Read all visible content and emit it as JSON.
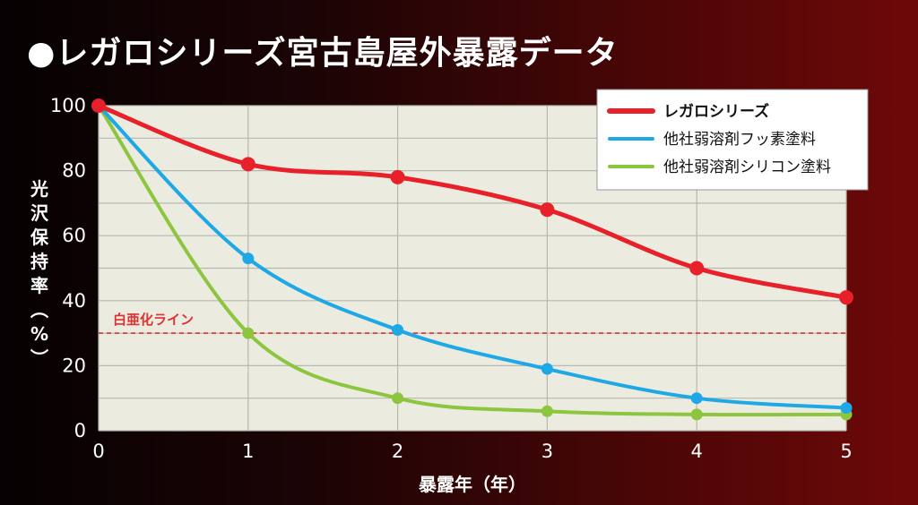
{
  "title": "●レガロシリーズ宮古島屋外暴露データ",
  "chart_data": {
    "type": "line",
    "title": "●レガロシリーズ宮古島屋外暴露データ",
    "xlabel": "暴露年（年）",
    "ylabel": "光沢保持率（%）",
    "x": [
      0,
      1,
      2,
      3,
      4,
      5
    ],
    "xlim": [
      0,
      5
    ],
    "ylim": [
      0,
      100
    ],
    "yticks": [
      0,
      20,
      40,
      60,
      80,
      100
    ],
    "grid": true,
    "legend_position": "top-right",
    "series": [
      {
        "name": "レガロシリーズ",
        "color": "#e8202a",
        "values": [
          100,
          82,
          78,
          68,
          50,
          41
        ]
      },
      {
        "name": "他社弱溶剤フッ素塗料",
        "color": "#1ea8e6",
        "values": [
          100,
          53,
          31,
          19,
          10,
          7
        ]
      },
      {
        "name": "他社弱溶剤シリコン塗料",
        "color": "#8cc63f",
        "values": [
          100,
          30,
          10,
          6,
          5,
          5
        ]
      }
    ],
    "reference_line": {
      "label": "白亜化ライン",
      "y": 30,
      "color": "#e03030"
    }
  }
}
